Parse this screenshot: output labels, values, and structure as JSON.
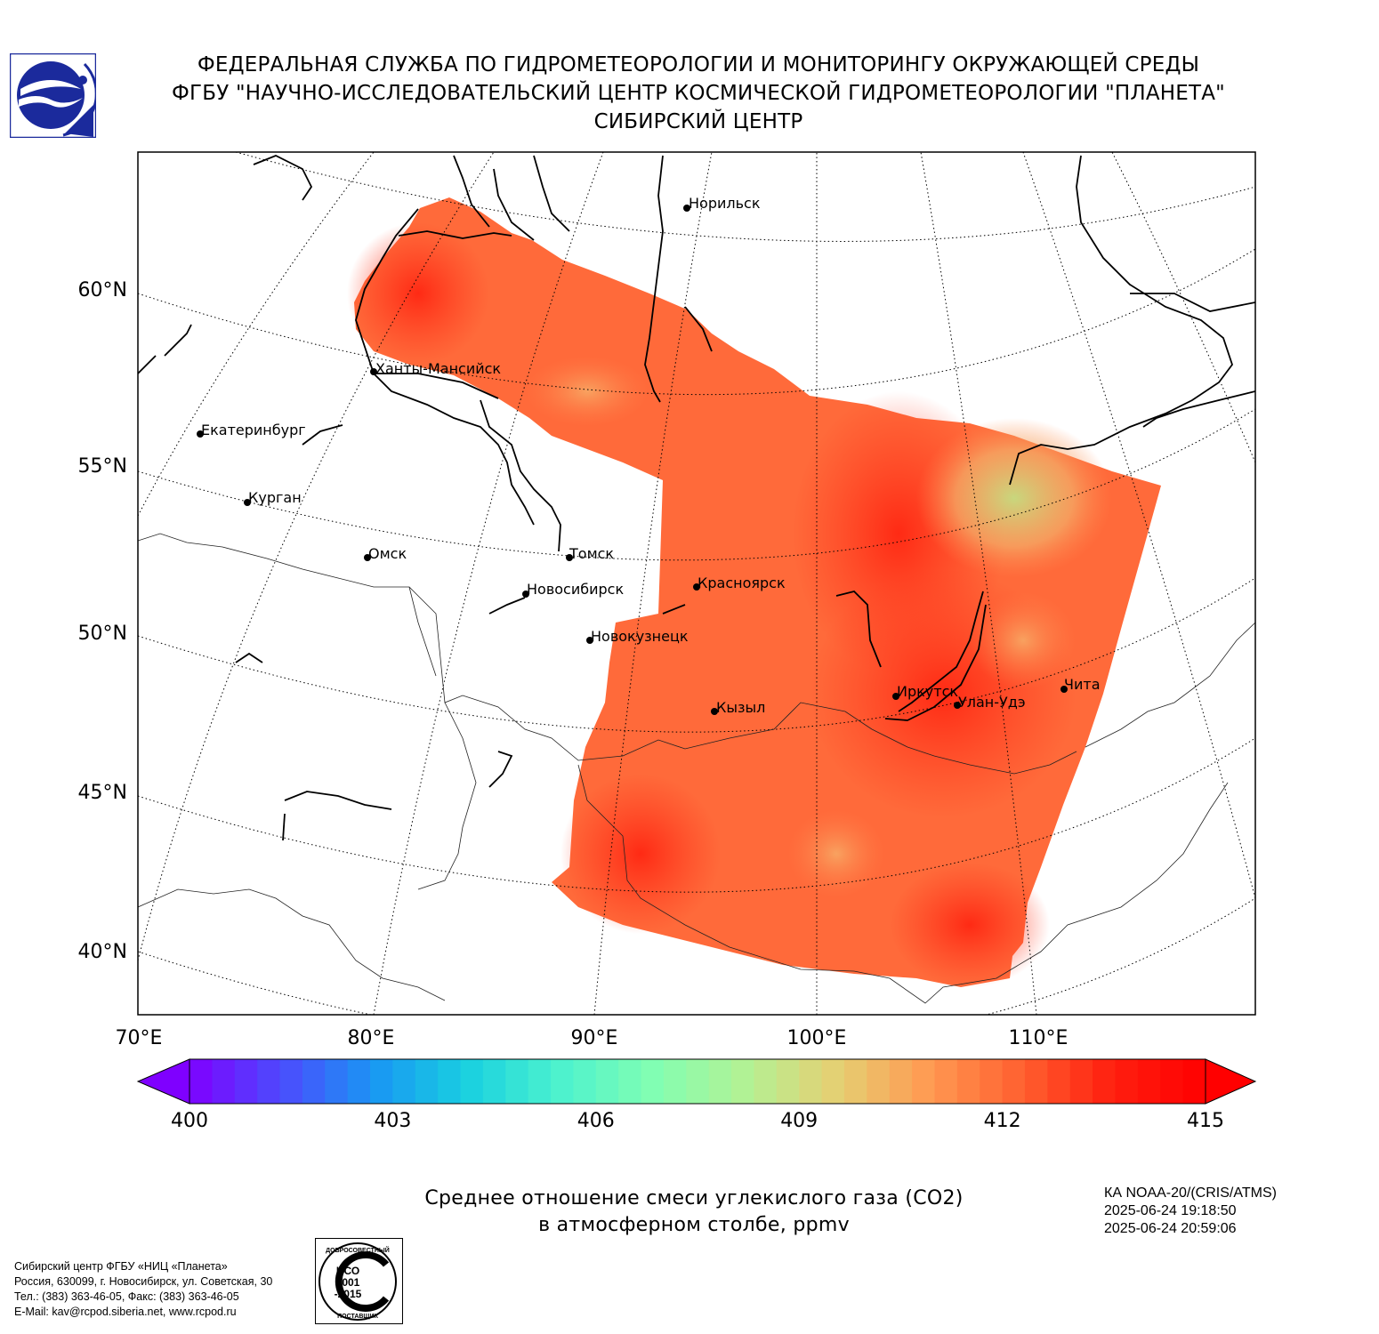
{
  "header": {
    "line1": "ФЕДЕРАЛЬНАЯ СЛУЖБА ПО ГИДРОМЕТЕОРОЛОГИИ И МОНИТОРИНГУ ОКРУЖАЮЩЕЙ СРЕДЫ",
    "line2": "ФГБУ \"НАУЧНО-ИССЛЕДОВАТЕЛЬСКИЙ ЦЕНТР КОСМИЧЕСКОЙ ГИДРОМЕТЕОРОЛОГИИ \"ПЛАНЕТА\"",
    "line3": "СИБИРСКИЙ ЦЕНТР"
  },
  "logo": {
    "icon": "roshydromet-logo-icon",
    "colors": [
      "#1b2a9c",
      "#ffffff"
    ]
  },
  "map": {
    "lat_labels": [
      "60°N",
      "55°N",
      "50°N",
      "45°N",
      "40°N"
    ],
    "lon_labels": [
      "70°E",
      "80°E",
      "90°E",
      "100°E",
      "110°E"
    ],
    "cities": [
      {
        "name": "Норильск"
      },
      {
        "name": "Ханты-Мансийск"
      },
      {
        "name": "Екатеринбург"
      },
      {
        "name": "Курган"
      },
      {
        "name": "Омск"
      },
      {
        "name": "Томск"
      },
      {
        "name": "Новосибирск"
      },
      {
        "name": "Красноярск"
      },
      {
        "name": "Новокузнецк"
      },
      {
        "name": "Кызыл"
      },
      {
        "name": "Иркутск"
      },
      {
        "name": "Улан-Удэ"
      },
      {
        "name": "Чита"
      }
    ]
  },
  "colorbar": {
    "ticks": [
      "400",
      "403",
      "406",
      "409",
      "412",
      "415"
    ],
    "min": 400,
    "max": 415,
    "colors": [
      "#7f00ff",
      "#4c4cfd",
      "#1996f3",
      "#19d0e0",
      "#4cf2ce",
      "#80feb3",
      "#b2f295",
      "#e5d073",
      "#ff9a52",
      "#ff6130",
      "#ff1e0f",
      "#ff0000"
    ]
  },
  "product": {
    "title_line1": "Среднее отношение смеси углекислого газа (CO2)",
    "title_line2": "в атмосферном столбе, ppmv"
  },
  "satinfo": {
    "line1": "КА NOAA-20/(CRIS/ATMS)",
    "line2": "2025-06-24 19:18:50",
    "line3": "2025-06-24 20:59:06"
  },
  "contact": {
    "line1": "Сибирский центр ФГБУ «НИЦ «Планета»",
    "line2": "Россия, 630099, г. Новосибирск, ул. Советская, 30",
    "line3": "Тел.: (383) 363-46-05, Факс: (383) 363-46-05",
    "line4": "E-Mail: kav@rcpod.siberia.net, www.rcpod.ru"
  },
  "iso_badge": {
    "top": "ДОБРОСОВЕСТНЫЙ",
    "main1": "ИСО",
    "main2": "9001",
    "main3": "-2015",
    "bottom": "ПОСТАВЩИК"
  }
}
